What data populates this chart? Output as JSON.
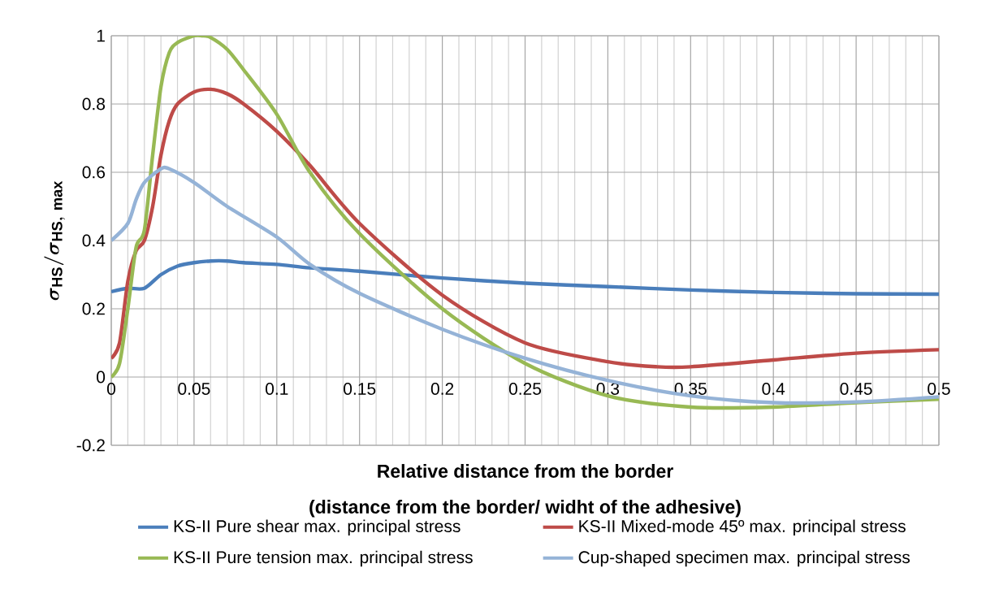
{
  "chart_data": {
    "type": "line",
    "xlabel": "Relative distance from the border",
    "ylabel": "\\sigma_{\\mathrm{HS}} /\\sigma_{\\mathrm{HS,\\ max}}",
    "annotations": [
      "(distance from the border/ widht of the adhesive)"
    ],
    "xlim": [
      0,
      0.5
    ],
    "ylim": [
      -0.2,
      1
    ],
    "xticks": [
      0,
      0.05,
      0.1,
      0.15,
      0.2,
      0.25,
      0.3,
      0.35,
      0.4,
      0.45,
      0.5
    ],
    "yticks": [
      -0.2,
      0,
      0.2,
      0.4,
      0.6,
      0.8,
      1
    ],
    "grid": true,
    "legend": "bottom",
    "marker": "none",
    "line_style": "solid",
    "series": [
      {
        "name": "KS-II Pure shear max. principal stress",
        "color": "#4a7ebb",
        "x": [
          0,
          0.01,
          0.02,
          0.03,
          0.04,
          0.05,
          0.06,
          0.07,
          0.08,
          0.1,
          0.12,
          0.15,
          0.2,
          0.25,
          0.3,
          0.35,
          0.4,
          0.45,
          0.5
        ],
        "values": [
          0.25,
          0.26,
          0.26,
          0.3,
          0.325,
          0.335,
          0.34,
          0.34,
          0.335,
          0.33,
          0.32,
          0.31,
          0.29,
          0.275,
          0.265,
          0.255,
          0.248,
          0.244,
          0.243
        ]
      },
      {
        "name": "KS-II Mixed-mode 45º max. principal stress",
        "color": "#be4b48",
        "x": [
          0,
          0.005,
          0.01,
          0.015,
          0.02,
          0.025,
          0.03,
          0.035,
          0.04,
          0.05,
          0.06,
          0.07,
          0.08,
          0.1,
          0.12,
          0.15,
          0.2,
          0.25,
          0.3,
          0.33,
          0.35,
          0.4,
          0.45,
          0.5
        ],
        "values": [
          0.055,
          0.1,
          0.28,
          0.37,
          0.4,
          0.5,
          0.65,
          0.75,
          0.8,
          0.835,
          0.843,
          0.83,
          0.8,
          0.72,
          0.62,
          0.45,
          0.24,
          0.1,
          0.045,
          0.03,
          0.03,
          0.05,
          0.07,
          0.08
        ]
      },
      {
        "name": "KS-II Pure tension max. principal stress",
        "color": "#98b954",
        "x": [
          0,
          0.005,
          0.01,
          0.015,
          0.02,
          0.025,
          0.03,
          0.035,
          0.04,
          0.05,
          0.055,
          0.06,
          0.07,
          0.08,
          0.1,
          0.12,
          0.15,
          0.2,
          0.25,
          0.3,
          0.35,
          0.4,
          0.45,
          0.5
        ],
        "values": [
          0,
          0.04,
          0.2,
          0.38,
          0.43,
          0.65,
          0.85,
          0.95,
          0.98,
          1,
          1,
          0.995,
          0.96,
          0.9,
          0.77,
          0.6,
          0.42,
          0.2,
          0.04,
          -0.055,
          -0.088,
          -0.088,
          -0.075,
          -0.065
        ]
      },
      {
        "name": "Cup-shaped specimen max. principal stress",
        "color": "#95b3d7",
        "x": [
          0,
          0.01,
          0.015,
          0.02,
          0.03,
          0.035,
          0.05,
          0.07,
          0.1,
          0.12,
          0.15,
          0.2,
          0.25,
          0.3,
          0.35,
          0.4,
          0.45,
          0.5
        ],
        "values": [
          0.4,
          0.45,
          0.52,
          0.57,
          0.61,
          0.61,
          0.57,
          0.5,
          0.41,
          0.33,
          0.245,
          0.14,
          0.055,
          -0.01,
          -0.055,
          -0.075,
          -0.073,
          -0.058
        ]
      }
    ]
  }
}
